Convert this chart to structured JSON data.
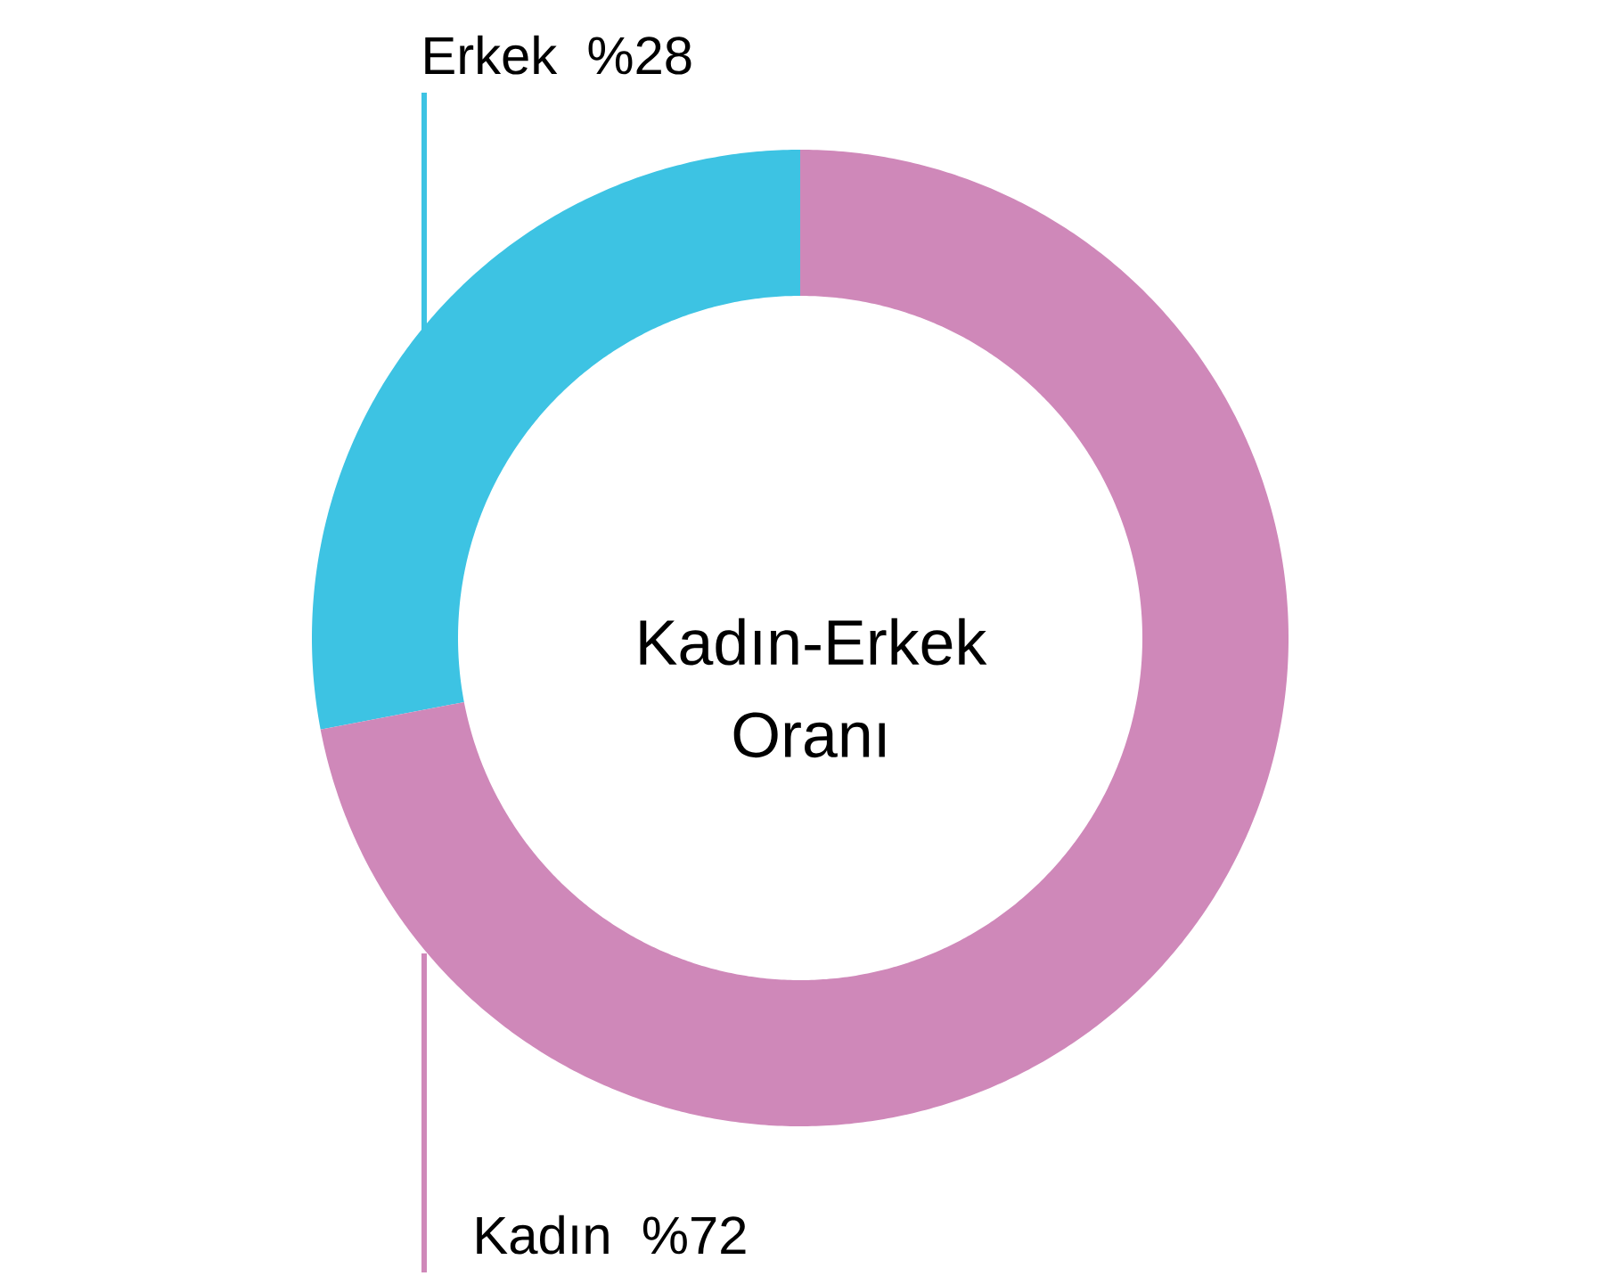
{
  "chart_data": {
    "type": "donut",
    "title": "Kadın-Erkek Oranı",
    "categories": [
      "Erkek",
      "Kadın"
    ],
    "values": [
      28,
      72
    ],
    "value_labels": [
      "%28",
      "%72"
    ],
    "colors": [
      "#3dc3e3",
      "#cf88b9"
    ]
  }
}
